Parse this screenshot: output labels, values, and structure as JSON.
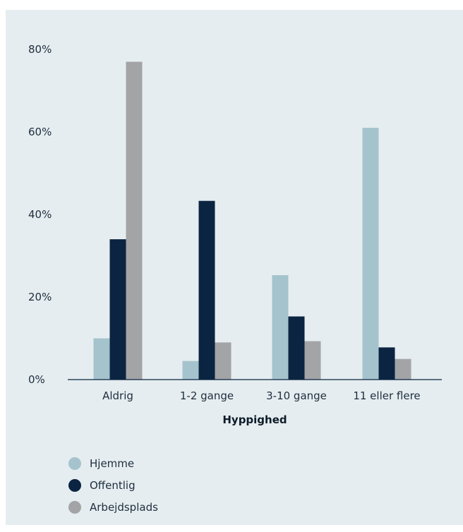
{
  "chart_data": {
    "type": "bar",
    "categories": [
      "Aldrig",
      "1-2 gange",
      "3-10 gange",
      "11 eller flere"
    ],
    "series": [
      {
        "name": "Hjemme",
        "values": [
          10,
          4.5,
          25.3,
          61
        ],
        "color": "#a5c3cd"
      },
      {
        "name": "Offentlig",
        "values": [
          34,
          43.3,
          15.3,
          7.8
        ],
        "color": "#0b2441"
      },
      {
        "name": "Arbejdsplads",
        "values": [
          77,
          9,
          9.3,
          5
        ],
        "color": "#a3a4a6"
      }
    ],
    "xlabel": "Hyppighed",
    "ylabel": "",
    "ylim": [
      0,
      80
    ],
    "yticks": [
      0,
      20,
      40,
      60,
      80
    ],
    "ytick_labels": [
      "0%",
      "20%",
      "40%",
      "60%",
      "80%"
    ],
    "legend_position": "bottom-left",
    "grid": false,
    "axis_color": "#0b2441",
    "panel_background": "#e5edf0"
  }
}
